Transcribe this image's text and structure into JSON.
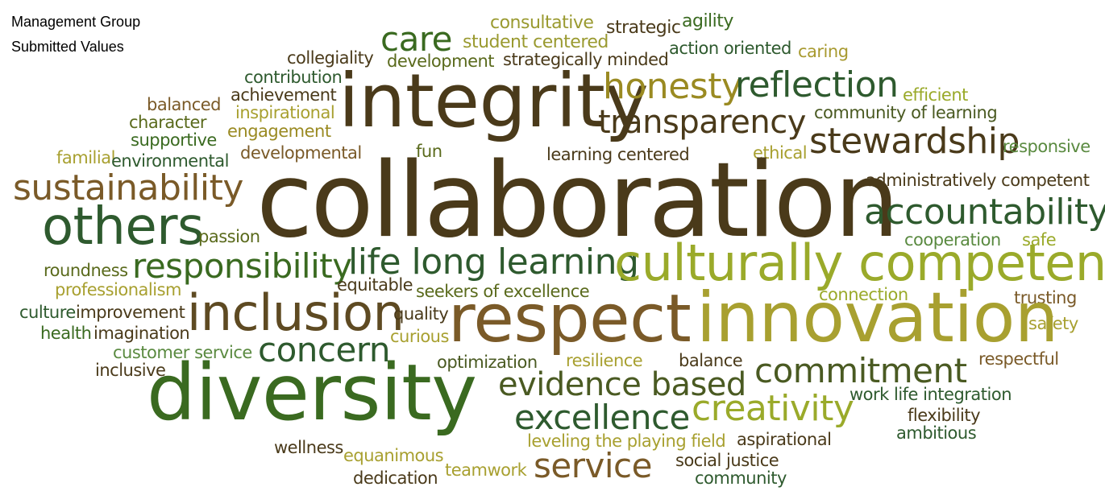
{
  "header": {
    "line1": "Management Group",
    "line2": "Submitted Values"
  },
  "palette": {
    "dark_brown": "#4a3a1a",
    "olive_brown": "#5e4a22",
    "dark_green": "#2e5a2e",
    "forest_green": "#3a6a20",
    "olive_green": "#5a6a1c",
    "yellow_green": "#9aaa2a",
    "mustard": "#a8a030",
    "tan_brown": "#7a5a28"
  },
  "words": [
    "consultative",
    "strategic",
    "agility",
    "care",
    "student centered",
    "collegiality",
    "development",
    "strategically minded",
    "action oriented",
    "caring",
    "contribution",
    "achievement",
    "integrity",
    "honesty",
    "reflection",
    "balanced",
    "inspirational",
    "efficient",
    "character",
    "community of learning",
    "engagement",
    "transparency",
    "supportive",
    "stewardship",
    "responsive",
    "familial",
    "environmental",
    "developmental",
    "fun",
    "learning centered",
    "ethical",
    "administratively competent",
    "sustainability",
    "collaboration",
    "others",
    "accountability",
    "passion",
    "cooperation",
    "safe",
    "roundness",
    "responsibility",
    "life long learning",
    "culturally competent",
    "professionalism",
    "equitable",
    "seekers of excellence",
    "connection",
    "trusting",
    "culture",
    "improvement",
    "inclusion",
    "respect",
    "innovation",
    "quality",
    "health",
    "imagination",
    "curious",
    "safety",
    "customer service",
    "concern",
    "optimization",
    "resilience",
    "balance",
    "respectful",
    "inclusive",
    "evidence based",
    "commitment",
    "diversity",
    "work life integration",
    "creativity",
    "excellence",
    "flexibility",
    "wellness",
    "equanimous",
    "leveling the playing field",
    "aspirational",
    "ambitious",
    "teamwork",
    "service",
    "social justice",
    "dedication",
    "community"
  ]
}
